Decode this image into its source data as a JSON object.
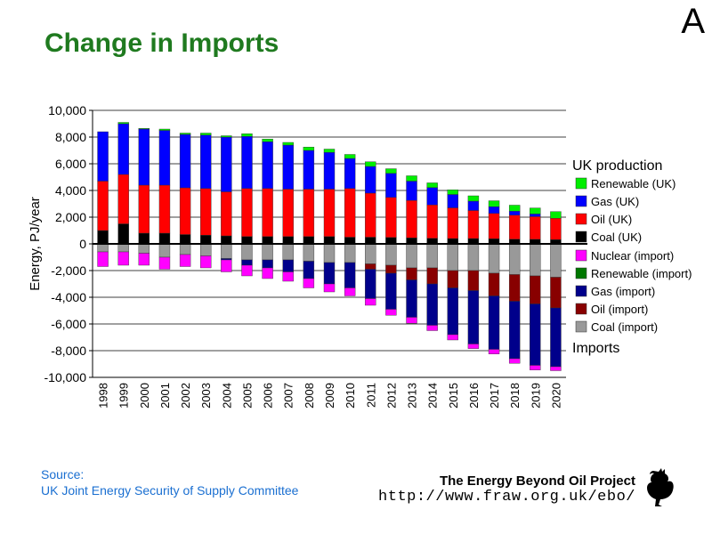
{
  "slide_letter": "A",
  "title": "Change in Imports",
  "source": {
    "line1": "Source:",
    "line2": "UK Joint Energy Security of Supply Committee"
  },
  "footer": {
    "project": "The Energy Beyond Oil Project",
    "url": "http://www.fraw.org.uk/ebo/"
  },
  "chart_data": {
    "type": "bar",
    "stacked": true,
    "ylabel": "Energy, PJ/year",
    "ylim": [
      -10000,
      10000
    ],
    "ytick_step": 2000,
    "ytick_labels": [
      "-10,000",
      "-8,000",
      "-6,000",
      "-4,000",
      "-2,000",
      "0",
      "2,000",
      "4,000",
      "6,000",
      "8,000",
      "10,000"
    ],
    "grid": true,
    "categories": [
      "1998",
      "1999",
      "2000",
      "2001",
      "2002",
      "2003",
      "2004",
      "2005",
      "2006",
      "2007",
      "2008",
      "2009",
      "2010",
      "2011",
      "2012",
      "2013",
      "2014",
      "2015",
      "2016",
      "2017",
      "2018",
      "2019",
      "2020"
    ],
    "legend_groups": [
      {
        "title": "UK production",
        "position": "right-upper",
        "entries": [
          "Renewable (UK)",
          "Gas (UK)",
          "Oil (UK)",
          "Coal (UK)"
        ]
      },
      {
        "title": "Imports",
        "position": "right-lower",
        "entries": [
          "Nuclear (import)",
          "Renewable (import)",
          "Gas (import)",
          "Oil (import)",
          "Coal (import)"
        ]
      }
    ],
    "positive_series": [
      {
        "name": "Coal (UK)",
        "color": "#000000",
        "values": [
          1000,
          1500,
          800,
          800,
          700,
          650,
          600,
          550,
          550,
          550,
          550,
          550,
          500,
          500,
          480,
          450,
          420,
          400,
          400,
          380,
          350,
          340,
          320
        ]
      },
      {
        "name": "Oil (UK)",
        "color": "#ff0000",
        "values": [
          3700,
          3700,
          3600,
          3600,
          3500,
          3500,
          3300,
          3600,
          3600,
          3550,
          3550,
          3550,
          3650,
          3300,
          3000,
          2800,
          2500,
          2300,
          2100,
          1900,
          1800,
          1700,
          1600
        ]
      },
      {
        "name": "Gas (UK)",
        "color": "#0000ff",
        "values": [
          3700,
          3800,
          4200,
          4100,
          4000,
          4000,
          4100,
          3900,
          3500,
          3300,
          2900,
          2750,
          2250,
          2000,
          1800,
          1450,
          1300,
          1000,
          700,
          500,
          300,
          200,
          0
        ]
      },
      {
        "name": "Renewable (UK)",
        "color": "#00ee00",
        "values": [
          0,
          100,
          50,
          100,
          100,
          150,
          100,
          200,
          200,
          200,
          250,
          250,
          300,
          350,
          350,
          400,
          350,
          350,
          400,
          450,
          450,
          450,
          500
        ]
      }
    ],
    "negative_series": [
      {
        "name": "Coal (import)",
        "color": "#999999",
        "values": [
          -600,
          -600,
          -700,
          -1000,
          -800,
          -900,
          -1100,
          -1200,
          -1200,
          -1200,
          -1300,
          -1400,
          -1400,
          -1500,
          -1600,
          -1800,
          -1800,
          -2000,
          -2000,
          -2200,
          -2300,
          -2400,
          -2500
        ]
      },
      {
        "name": "Oil (import)",
        "color": "#880000",
        "values": [
          0,
          0,
          0,
          0,
          0,
          0,
          0,
          0,
          0,
          0,
          0,
          0,
          0,
          -400,
          -600,
          -900,
          -1200,
          -1300,
          -1500,
          -1700,
          -2000,
          -2100,
          -2300
        ]
      },
      {
        "name": "Gas (import)",
        "color": "#00008b",
        "values": [
          0,
          0,
          0,
          0,
          0,
          0,
          -100,
          -400,
          -600,
          -900,
          -1300,
          -1600,
          -1900,
          -2200,
          -2700,
          -2800,
          -3100,
          -3500,
          -4000,
          -4000,
          -4300,
          -4600,
          -4400
        ]
      },
      {
        "name": "Renewable (import)",
        "color": "#007700",
        "values": [
          0,
          0,
          0,
          0,
          0,
          0,
          0,
          0,
          0,
          0,
          0,
          0,
          0,
          0,
          0,
          0,
          0,
          0,
          0,
          0,
          0,
          0,
          0
        ]
      },
      {
        "name": "Nuclear (import)",
        "color": "#ff00ff",
        "values": [
          -1100,
          -1000,
          -900,
          -900,
          -900,
          -900,
          -900,
          -800,
          -800,
          -700,
          -700,
          -600,
          -600,
          -500,
          -450,
          -450,
          -400,
          -400,
          -350,
          -350,
          -350,
          -350,
          -300
        ]
      }
    ]
  }
}
